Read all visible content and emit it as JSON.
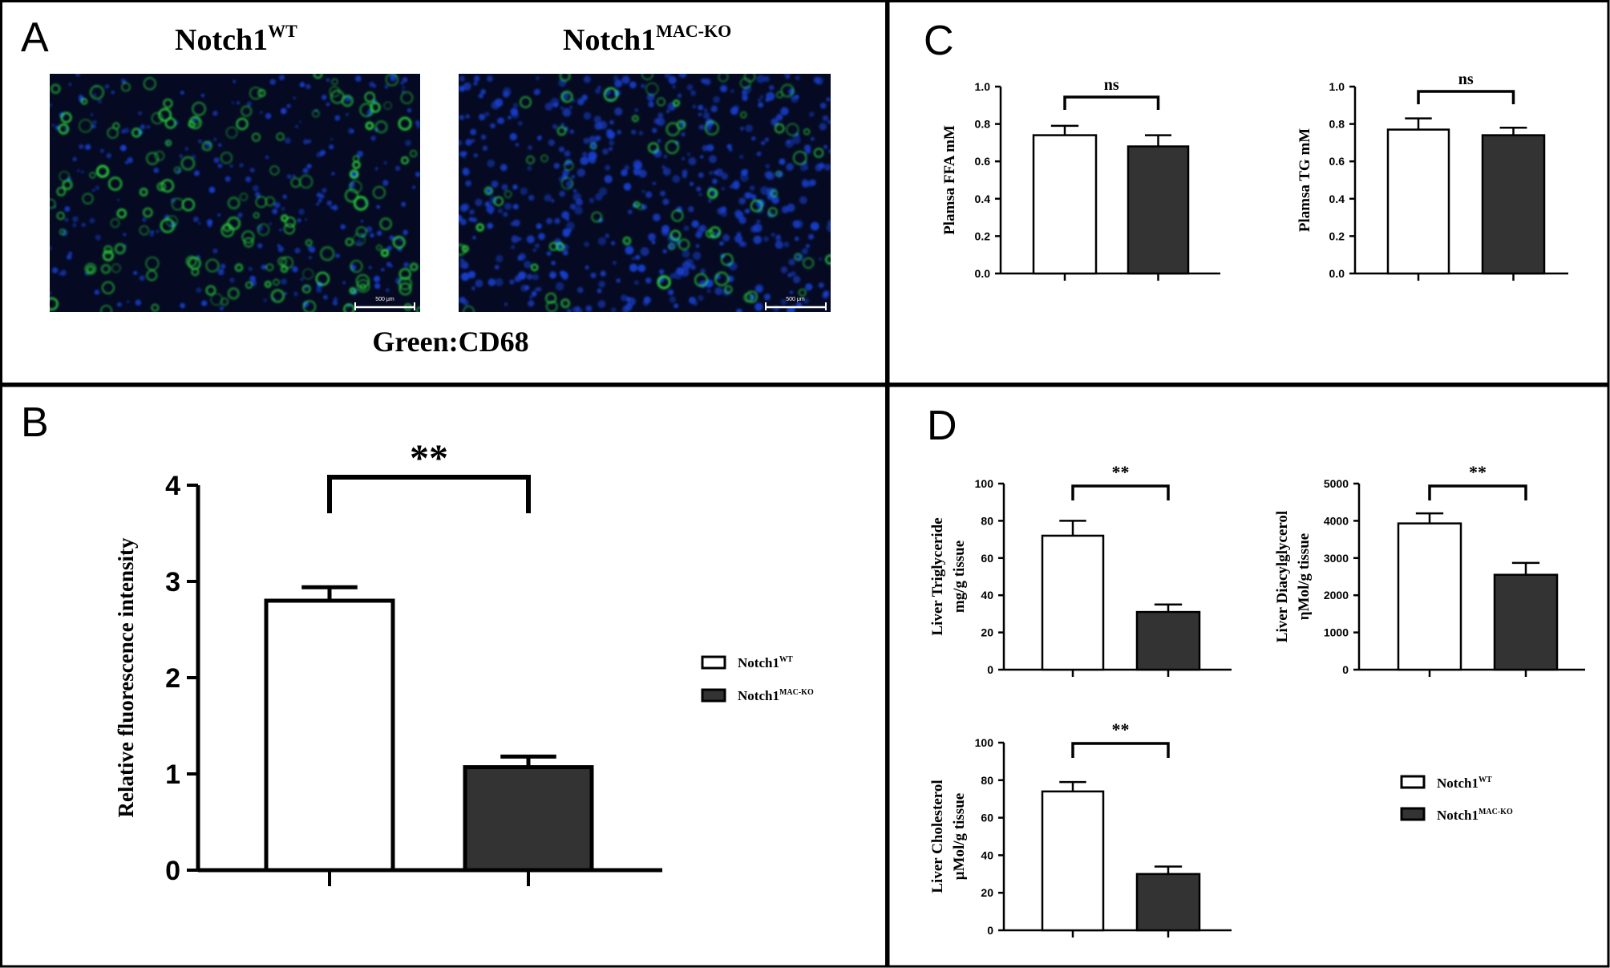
{
  "panels": [
    {
      "letter": "A"
    },
    {
      "letter": "B"
    },
    {
      "letter": "C"
    },
    {
      "letter": "D"
    }
  ],
  "panel_a": {
    "left_label_main": "Notch1",
    "left_label_sup": "WT",
    "right_label_main": "Notch1",
    "right_label_sup": "MAC-KO",
    "scale_bar_text": "500 μm",
    "caption": "Green:CD68",
    "colors": {
      "nuclei": "#1a3fd0",
      "cd68": "#2ad13a",
      "background": "#05081a"
    }
  },
  "legend": {
    "entries": [
      {
        "main": "Notch1",
        "sup": "WT",
        "fill": "#ffffff"
      },
      {
        "main": "Notch1",
        "sup": "MAC-KO",
        "fill": "#333333"
      }
    ]
  },
  "chart_data": [
    {
      "id": "B",
      "type": "bar",
      "categories": [
        "Notch1WT",
        "Notch1MAC-KO"
      ],
      "values": [
        2.8,
        1.07
      ],
      "errors": [
        0.14,
        0.11
      ],
      "fills": [
        "#ffffff",
        "#333333"
      ],
      "ylabel": [
        "Relative fluorescence intensity"
      ],
      "ylim": [
        0,
        4
      ],
      "yticks": [
        0,
        1,
        2,
        3,
        4
      ],
      "significance": "**"
    },
    {
      "id": "C1",
      "type": "bar",
      "categories": [
        "Notch1WT",
        "Notch1MAC-KO"
      ],
      "values": [
        0.74,
        0.68
      ],
      "errors": [
        0.05,
        0.06
      ],
      "fills": [
        "#ffffff",
        "#333333"
      ],
      "ylabel": [
        "Plamsa FFA mM"
      ],
      "ylim": [
        0,
        1.0
      ],
      "yticks": [
        "0.0",
        "0.2",
        "0.4",
        "0.6",
        "0.8",
        "1.0"
      ],
      "significance": "ns"
    },
    {
      "id": "C2",
      "type": "bar",
      "categories": [
        "Notch1WT",
        "Notch1MAC-KO"
      ],
      "values": [
        0.77,
        0.74
      ],
      "errors": [
        0.06,
        0.04
      ],
      "fills": [
        "#ffffff",
        "#333333"
      ],
      "ylabel": [
        "Plamsa TG mM"
      ],
      "ylim": [
        0,
        1.0
      ],
      "yticks": [
        "0.0",
        "0.2",
        "0.4",
        "0.6",
        "0.8",
        "1.0"
      ],
      "significance": "ns"
    },
    {
      "id": "D1",
      "type": "bar",
      "categories": [
        "Notch1WT",
        "Notch1MAC-KO"
      ],
      "values": [
        72,
        31
      ],
      "errors": [
        8,
        4
      ],
      "fills": [
        "#ffffff",
        "#333333"
      ],
      "ylabel": [
        "Liver Triglyceride",
        "mg/g tissue"
      ],
      "ylim": [
        0,
        100
      ],
      "yticks": [
        "0",
        "20",
        "40",
        "60",
        "80",
        "100"
      ],
      "significance": "**"
    },
    {
      "id": "D2",
      "type": "bar",
      "categories": [
        "Notch1WT",
        "Notch1MAC-KO"
      ],
      "values": [
        3930,
        2550
      ],
      "errors": [
        270,
        320
      ],
      "fills": [
        "#ffffff",
        "#333333"
      ],
      "ylabel": [
        "Liver Diacylglycerol",
        "ηMol/g tissue"
      ],
      "ylim": [
        0,
        5000
      ],
      "yticks": [
        "0",
        "1000",
        "2000",
        "3000",
        "4000",
        "5000"
      ],
      "significance": "**"
    },
    {
      "id": "D3",
      "type": "bar",
      "categories": [
        "Notch1WT",
        "Notch1MAC-KO"
      ],
      "values": [
        74,
        30
      ],
      "errors": [
        5,
        4
      ],
      "fills": [
        "#ffffff",
        "#333333"
      ],
      "ylabel": [
        "Liver Cholesterol",
        "μMol/g tissue"
      ],
      "ylim": [
        0,
        100
      ],
      "yticks": [
        "0",
        "20",
        "40",
        "60",
        "80",
        "100"
      ],
      "significance": "**"
    }
  ]
}
